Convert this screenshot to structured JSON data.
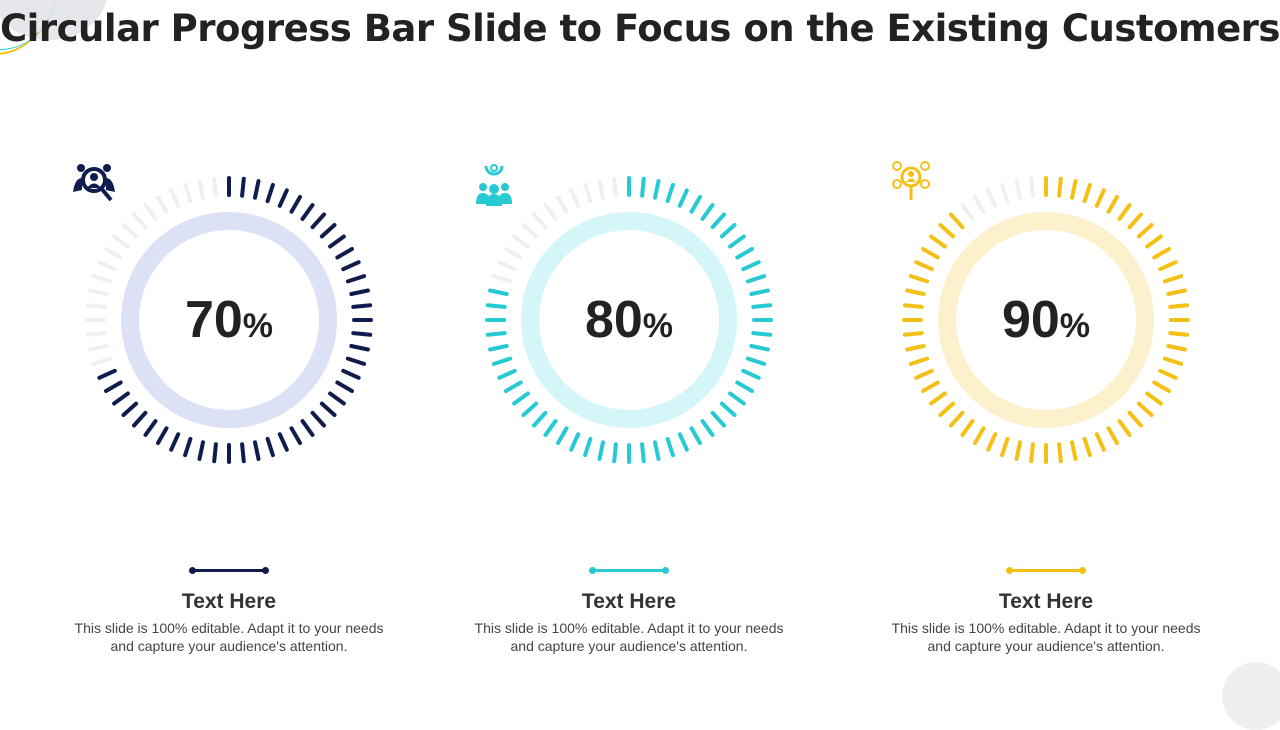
{
  "title": "Circular Progress Bar Slide to Focus on the Existing Customers",
  "cards": [
    {
      "value": 70,
      "percent_sign": "%",
      "color": "#0f1c4d",
      "ring": "#dde1f6",
      "icon": "customer-search-icon",
      "title": "Text Here",
      "desc": "This slide is 100% editable. Adapt it to your needs and capture your audience's attention."
    },
    {
      "value": 80,
      "percent_sign": "%",
      "color": "#27c9d3",
      "ring": "#d5f6f8",
      "icon": "target-customers-icon",
      "title": "Text Here",
      "desc": "This slide is 100% editable. Adapt it to your needs and capture your audience's attention."
    },
    {
      "value": 90,
      "percent_sign": "%",
      "color": "#f5c016",
      "ring": "#fdf0cd",
      "icon": "customer-network-icon",
      "title": "Text Here",
      "desc": "This slide is 100% editable. Adapt it to your needs and capture your audience's attention."
    }
  ]
}
